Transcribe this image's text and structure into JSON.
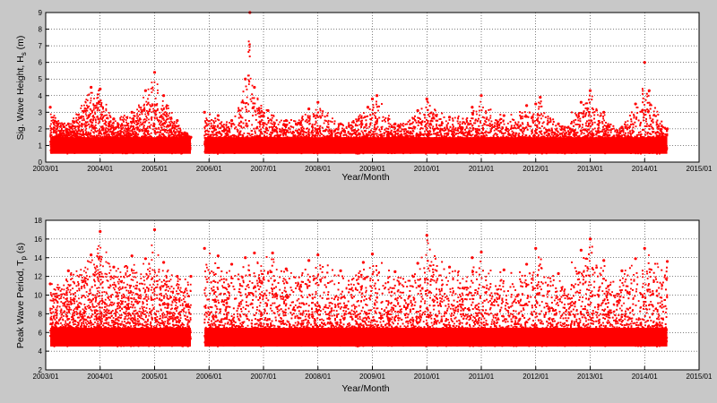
{
  "figure": {
    "background": "#c8c8c8",
    "axes_background": "#ffffff",
    "marker_color": "#ff0000"
  },
  "chart_data": [
    {
      "type": "scatter",
      "title": "",
      "xlabel": "Year/Month",
      "ylabel": {
        "main": "Sig. Wave Height, H",
        "subscript": "s",
        "unit": " (m)"
      },
      "x_ticks": [
        "2003/01",
        "2004/01",
        "2005/01",
        "2006/01",
        "2007/01",
        "2008/01",
        "2009/01",
        "2010/01",
        "2011/01",
        "2012/01",
        "2013/01",
        "2014/01",
        "2015/01"
      ],
      "xlim": [
        "2003/01",
        "2015/01"
      ],
      "ylim": [
        0,
        9
      ],
      "y_ticks": [
        0,
        1,
        2,
        3,
        4,
        5,
        6,
        7,
        8,
        9
      ],
      "grid": true,
      "color": "#ff0000",
      "data_gaps": [
        [
          "2005/09",
          "2005/12"
        ]
      ],
      "segments": [
        [
          "2003/02",
          "2005/09"
        ],
        [
          "2005/12",
          "2014/06"
        ]
      ],
      "baseline": [
        0.5,
        1.5
      ],
      "series": [
        {
          "x": [
            "2003/02",
            "2003/06",
            "2003/11",
            "2004/01",
            "2004/04",
            "2004/08",
            "2004/11",
            "2005/01",
            "2005/03",
            "2005/06",
            "2005/09",
            "2005/12",
            "2006/03",
            "2006/06",
            "2006/09",
            "2006/10",
            "2006/11",
            "2007/02",
            "2007/06",
            "2007/11",
            "2008/01",
            "2008/06",
            "2008/12",
            "2009/01",
            "2009/02",
            "2009/06",
            "2009/11",
            "2010/01",
            "2010/06",
            "2010/11",
            "2011/01",
            "2011/06",
            "2011/11",
            "2012/01",
            "2012/02",
            "2012/06",
            "2012/11",
            "2013/01",
            "2013/04",
            "2013/08",
            "2013/11",
            "2014/01",
            "2014/02",
            "2014/06"
          ],
          "y": [
            3.3,
            2.3,
            4.5,
            4.4,
            2.6,
            3.0,
            4.3,
            5.4,
            4.0,
            2.5,
            1.5,
            3.0,
            2.8,
            2.5,
            5.0,
            9.0,
            4.5,
            3.1,
            2.5,
            3.2,
            3.6,
            2.3,
            3.3,
            3.8,
            4.0,
            2.3,
            3.1,
            3.8,
            2.7,
            3.3,
            4.0,
            2.8,
            3.4,
            3.5,
            3.9,
            2.3,
            3.6,
            4.3,
            3.0,
            2.1,
            3.5,
            6.0,
            4.3,
            2.0
          ]
        }
      ]
    },
    {
      "type": "scatter",
      "title": "",
      "xlabel": "Year/Month",
      "ylabel": {
        "main": "Peak Wave Period, T",
        "subscript": "p",
        "unit": " (s)"
      },
      "x_ticks": [
        "2003/01",
        "2004/01",
        "2005/01",
        "2006/01",
        "2007/01",
        "2008/01",
        "2009/01",
        "2010/01",
        "2011/01",
        "2012/01",
        "2013/01",
        "2014/01",
        "2015/01"
      ],
      "xlim": [
        "2003/01",
        "2015/01"
      ],
      "ylim": [
        2,
        18
      ],
      "y_ticks": [
        2,
        4,
        6,
        8,
        10,
        12,
        14,
        16,
        18
      ],
      "grid": true,
      "color": "#ff0000",
      "data_gaps": [
        [
          "2005/09",
          "2005/12"
        ]
      ],
      "segments": [
        [
          "2003/02",
          "2005/09"
        ],
        [
          "2005/12",
          "2014/06"
        ]
      ],
      "baseline": [
        4.5,
        6.5
      ],
      "series": [
        {
          "x": [
            "2003/02",
            "2003/06",
            "2003/11",
            "2004/01",
            "2004/04",
            "2004/08",
            "2004/11",
            "2005/01",
            "2005/03",
            "2005/06",
            "2005/09",
            "2005/12",
            "2006/03",
            "2006/06",
            "2006/09",
            "2006/11",
            "2007/03",
            "2007/06",
            "2007/11",
            "2008/01",
            "2008/06",
            "2008/11",
            "2009/01",
            "2009/06",
            "2009/11",
            "2010/01",
            "2010/06",
            "2010/11",
            "2011/01",
            "2011/06",
            "2011/11",
            "2012/01",
            "2012/06",
            "2012/11",
            "2013/01",
            "2013/04",
            "2013/08",
            "2013/11",
            "2014/01",
            "2014/06"
          ],
          "y": [
            11.2,
            12.6,
            14.3,
            16.8,
            13.0,
            14.2,
            13.9,
            17.0,
            13.5,
            12.0,
            12.0,
            15.0,
            14.2,
            13.3,
            14.0,
            14.5,
            14.5,
            12.8,
            13.7,
            14.3,
            12.6,
            13.5,
            14.4,
            12.5,
            13.4,
            16.4,
            13.0,
            14.0,
            14.6,
            12.7,
            13.3,
            15.0,
            12.3,
            14.8,
            16.0,
            13.7,
            12.6,
            13.9,
            15.0,
            13.6
          ]
        }
      ]
    }
  ]
}
